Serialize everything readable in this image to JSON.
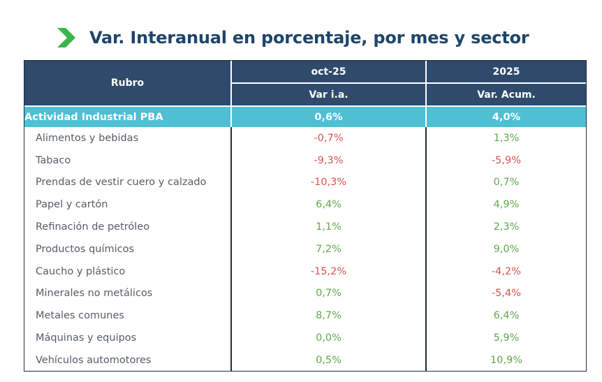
{
  "title": "Var. Interanual en porcentaje, por mes y sector",
  "colors": {
    "title": "#1e4569",
    "chevron": "#3db54a",
    "header_bg": "#2f4a6b",
    "highlight_bg": "#4fbfd4",
    "negative": "#d9534f",
    "positive": "#5fa84a"
  },
  "header": {
    "rubro": "Rubro",
    "col1_top": "oct-25",
    "col1_sub": "Var i.a.",
    "col2_top": "2025",
    "col2_sub": "Var. Acum."
  },
  "highlight": {
    "label": "Actividad Industrial PBA",
    "var_ia": "0,6%",
    "var_acum": "4,0%"
  },
  "rows": [
    {
      "label": "Alimentos y bebidas",
      "var_ia": "-0,7%",
      "var_acum": "1,3%"
    },
    {
      "label": "Tabaco",
      "var_ia": "-9,3%",
      "var_acum": "-5,9%"
    },
    {
      "label": "Prendas de vestir cuero y calzado",
      "var_ia": "-10,3%",
      "var_acum": "0,7%"
    },
    {
      "label": "Papel y cartón",
      "var_ia": "6,4%",
      "var_acum": "4,9%"
    },
    {
      "label": "Refinación de petróleo",
      "var_ia": "1,1%",
      "var_acum": "2,3%"
    },
    {
      "label": "Productos químicos",
      "var_ia": "7,2%",
      "var_acum": "9,0%"
    },
    {
      "label": "Caucho y plástico",
      "var_ia": "-15,2%",
      "var_acum": "-4,2%"
    },
    {
      "label": "Minerales no metálicos",
      "var_ia": "0,7%",
      "var_acum": "-5,4%"
    },
    {
      "label": "Metales comunes",
      "var_ia": "8,7%",
      "var_acum": "6,4%"
    },
    {
      "label": "Máquinas y equipos",
      "var_ia": "0,0%",
      "var_acum": "5,9%"
    },
    {
      "label": "Vehículos automotores",
      "var_ia": "0,5%",
      "var_acum": "10,9%"
    }
  ]
}
